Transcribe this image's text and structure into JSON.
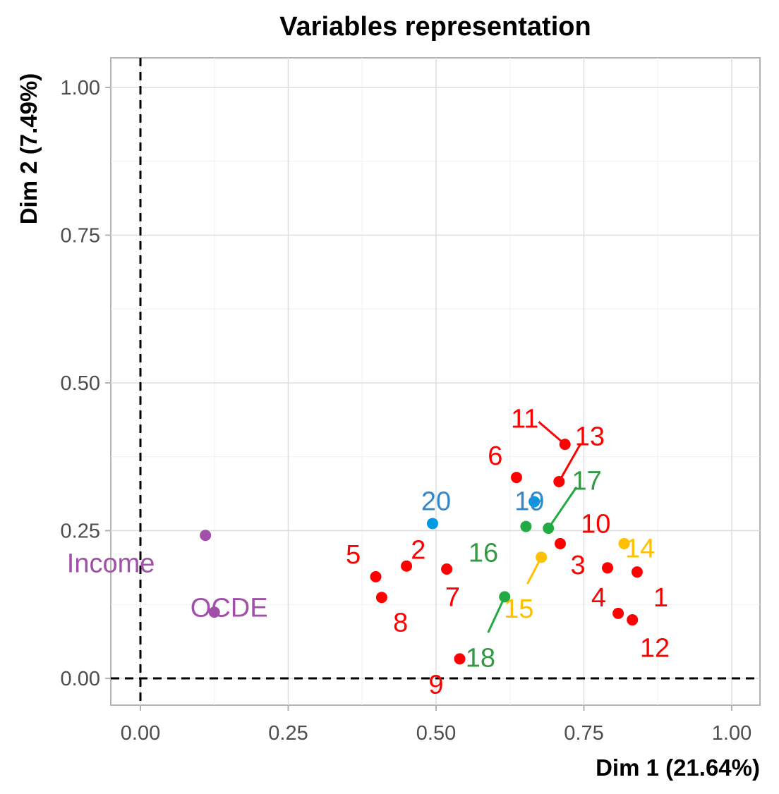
{
  "chart_data": {
    "type": "scatter",
    "title": "Variables representation",
    "xlabel": "Dim 1 (21.64%)",
    "ylabel": "Dim 2 (7.49%)",
    "xlim": [
      -0.1,
      1.1
    ],
    "ylim": [
      -0.05,
      1.05
    ],
    "xticks": [
      "0.00",
      "0.25",
      "0.50",
      "0.75",
      "1.00"
    ],
    "yticks": [
      "0.00",
      "0.25",
      "0.50",
      "0.75",
      "1.00"
    ],
    "grid": true,
    "reference_lines": {
      "x": 0,
      "y": 0,
      "style": "dashed"
    },
    "colors": {
      "red": "#ff0000",
      "blue": "#0099e6",
      "green": "#22aa44",
      "orange": "#ffc000",
      "purple": "#a050a8"
    },
    "points": [
      {
        "label": "1",
        "x": 0.84,
        "y": 0.18,
        "color": "#ff0000",
        "lx": 0.88,
        "ly": 0.137,
        "label_color": "#ff0000"
      },
      {
        "label": "2",
        "x": 0.45,
        "y": 0.19,
        "color": "#ff0000",
        "lx": 0.47,
        "ly": 0.218,
        "label_color": "#ff0000"
      },
      {
        "label": "3",
        "x": 0.71,
        "y": 0.228,
        "color": "#ff0000",
        "lx": 0.74,
        "ly": 0.192,
        "label_color": "#ff0000"
      },
      {
        "label": "4",
        "x": 0.808,
        "y": 0.11,
        "color": "#ff0000",
        "lx": 0.775,
        "ly": 0.137,
        "label_color": "#ff0000"
      },
      {
        "label": "5",
        "x": 0.398,
        "y": 0.172,
        "color": "#ff0000",
        "lx": 0.36,
        "ly": 0.21,
        "label_color": "#ff0000"
      },
      {
        "label": "6",
        "x": 0.636,
        "y": 0.34,
        "color": "#ff0000",
        "lx": 0.6,
        "ly": 0.377,
        "label_color": "#ff0000"
      },
      {
        "label": "7",
        "x": 0.518,
        "y": 0.185,
        "color": "#ff0000",
        "lx": 0.528,
        "ly": 0.138,
        "label_color": "#ff0000"
      },
      {
        "label": "8",
        "x": 0.408,
        "y": 0.137,
        "color": "#ff0000",
        "lx": 0.44,
        "ly": 0.095,
        "label_color": "#ff0000"
      },
      {
        "label": "9",
        "x": 0.54,
        "y": 0.033,
        "color": "#ff0000",
        "lx": 0.5,
        "ly": -0.01,
        "label_color": "#ff0000"
      },
      {
        "label": "10",
        "x": 0.79,
        "y": 0.187,
        "color": "#ff0000",
        "lx": 0.77,
        "ly": 0.262,
        "label_color": "#ff0000"
      },
      {
        "label": "11",
        "x": 0.718,
        "y": 0.396,
        "color": "#ff0000",
        "lx": 0.65,
        "ly": 0.44,
        "label_color": "#ff0000",
        "leader": true
      },
      {
        "label": "12",
        "x": 0.832,
        "y": 0.099,
        "color": "#ff0000",
        "lx": 0.87,
        "ly": 0.052,
        "label_color": "#ff0000"
      },
      {
        "label": "13",
        "x": 0.708,
        "y": 0.333,
        "color": "#ff0000",
        "lx": 0.76,
        "ly": 0.41,
        "label_color": "#ff0000",
        "leader": true
      },
      {
        "label": "14",
        "x": 0.818,
        "y": 0.228,
        "color": "#ffc000",
        "lx": 0.845,
        "ly": 0.22,
        "label_color": "#ffc000"
      },
      {
        "label": "15",
        "x": 0.678,
        "y": 0.205,
        "color": "#ffc000",
        "lx": 0.64,
        "ly": 0.118,
        "label_color": "#ffc000",
        "leader": true
      },
      {
        "label": "16",
        "x": 0.652,
        "y": 0.257,
        "color": "#22aa44",
        "lx": 0.58,
        "ly": 0.213,
        "label_color": "#339944"
      },
      {
        "label": "17",
        "x": 0.69,
        "y": 0.254,
        "color": "#22aa44",
        "lx": 0.755,
        "ly": 0.335,
        "label_color": "#339944",
        "leader": true
      },
      {
        "label": "18",
        "x": 0.616,
        "y": 0.138,
        "color": "#22aa44",
        "lx": 0.575,
        "ly": 0.035,
        "label_color": "#339944",
        "leader": true
      },
      {
        "label": "19",
        "x": 0.666,
        "y": 0.299,
        "color": "#0099e6",
        "lx": 0.658,
        "ly": 0.3,
        "label_color": "#3388cc"
      },
      {
        "label": "20",
        "x": 0.494,
        "y": 0.262,
        "color": "#0099e6",
        "lx": 0.5,
        "ly": 0.3,
        "label_color": "#3388cc"
      },
      {
        "label": "Income",
        "x": 0.11,
        "y": 0.242,
        "color": "#a050a8",
        "lx": -0.05,
        "ly": 0.195,
        "label_color": "#a050a8"
      },
      {
        "label": "OCDE",
        "x": 0.125,
        "y": 0.112,
        "color": "#a050a8",
        "lx": 0.15,
        "ly": 0.12,
        "label_color": "#a050a8"
      }
    ]
  }
}
